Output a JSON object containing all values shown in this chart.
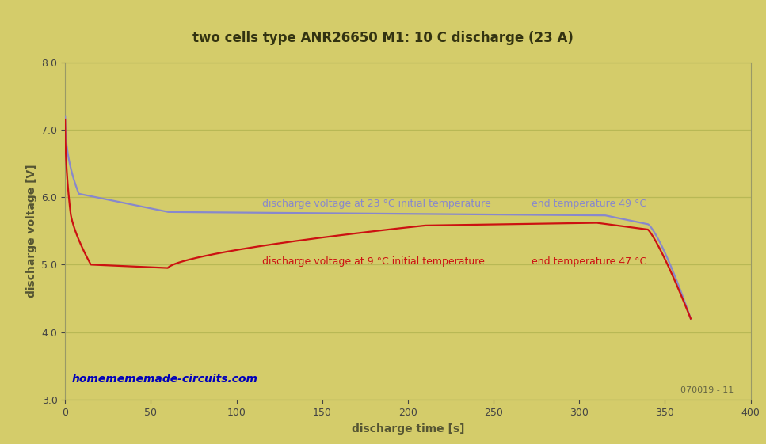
{
  "title": "two cells type ANR26650 M1: 10 C discharge (23 A)",
  "xlabel": "discharge time [s]",
  "ylabel": "discharge voltage [V]",
  "xlim": [
    0,
    400
  ],
  "ylim": [
    3.0,
    8.0
  ],
  "xticks": [
    0,
    50,
    100,
    150,
    200,
    250,
    300,
    350,
    400
  ],
  "yticks": [
    3.0,
    4.0,
    5.0,
    6.0,
    7.0,
    8.0
  ],
  "background_color": "#d4cc6a",
  "grid_color": "#b8b855",
  "line23_color": "#8888cc",
  "line9_color": "#cc1111",
  "watermark": "homemememade-circuits.com",
  "watermark_color": "#0000bb",
  "label23": "discharge voltage at 23 °C initial temperature",
  "label9": "discharge voltage at 9 °C initial temperature",
  "end_temp23": "end temperature 49 °C",
  "end_temp9": "end temperature 47 °C",
  "footnote": "070019 - 11",
  "title_fontsize": 12,
  "axis_label_fontsize": 10,
  "tick_fontsize": 9,
  "annotation_fontsize": 9
}
